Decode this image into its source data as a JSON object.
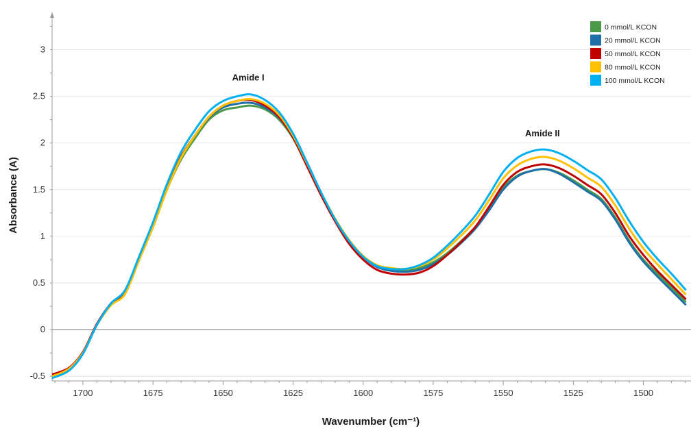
{
  "chart_data": {
    "type": "line",
    "title": "",
    "xlabel": "Wavenumber (cm⁻¹)",
    "ylabel": "Absorbance (A)",
    "x_reversed": true,
    "xlim": [
      1711,
      1483
    ],
    "ylim": [
      -0.55,
      3.4
    ],
    "x_ticks": [
      1700,
      1675,
      1650,
      1625,
      1600,
      1575,
      1550,
      1525,
      1500
    ],
    "y_ticks": [
      -0.5,
      0,
      0.5,
      1,
      1.5,
      2,
      2.5,
      3
    ],
    "x_tick_labels": [
      "1700",
      "1675",
      "1650",
      "1625",
      "1600",
      "1575",
      "1550",
      "1525",
      "1500"
    ],
    "y_tick_labels": [
      "-0.5",
      "0",
      "0.5",
      "1",
      "1.5",
      "2",
      "2.5",
      "3"
    ],
    "grid": "horizontal",
    "legend_position": "top-right",
    "annotations": [
      {
        "text": "Amide I",
        "x": 1641,
        "y": 2.7
      },
      {
        "text": "Amide II",
        "x": 1536,
        "y": 2.1
      }
    ],
    "series": [
      {
        "name": "0 mmol/L KCON",
        "color": "#4a9a4a",
        "x": [
          1711,
          1705,
          1700,
          1695,
          1690,
          1685,
          1680,
          1675,
          1670,
          1665,
          1660,
          1655,
          1650,
          1645,
          1640,
          1635,
          1630,
          1625,
          1620,
          1615,
          1610,
          1605,
          1600,
          1595,
          1590,
          1585,
          1580,
          1575,
          1570,
          1565,
          1560,
          1555,
          1550,
          1545,
          1540,
          1535,
          1530,
          1525,
          1520,
          1515,
          1510,
          1505,
          1500,
          1495,
          1490,
          1485
        ],
        "y": [
          -0.5,
          -0.42,
          -0.25,
          0.05,
          0.27,
          0.4,
          0.75,
          1.1,
          1.5,
          1.82,
          2.05,
          2.25,
          2.35,
          2.38,
          2.4,
          2.36,
          2.25,
          2.05,
          1.75,
          1.45,
          1.18,
          0.95,
          0.78,
          0.68,
          0.65,
          0.64,
          0.66,
          0.72,
          0.82,
          0.95,
          1.1,
          1.3,
          1.52,
          1.65,
          1.7,
          1.72,
          1.68,
          1.6,
          1.5,
          1.4,
          1.2,
          0.95,
          0.75,
          0.6,
          0.45,
          0.3
        ]
      },
      {
        "name": "20 mmol/L KCON",
        "color": "#1f6fa8",
        "x": [
          1711,
          1705,
          1700,
          1695,
          1690,
          1685,
          1680,
          1675,
          1670,
          1665,
          1660,
          1655,
          1650,
          1645,
          1640,
          1635,
          1630,
          1625,
          1620,
          1615,
          1610,
          1605,
          1600,
          1595,
          1590,
          1585,
          1580,
          1575,
          1570,
          1565,
          1560,
          1555,
          1550,
          1545,
          1540,
          1535,
          1530,
          1525,
          1520,
          1515,
          1510,
          1505,
          1500,
          1495,
          1490,
          1485
        ],
        "y": [
          -0.5,
          -0.42,
          -0.24,
          0.06,
          0.28,
          0.42,
          0.76,
          1.12,
          1.52,
          1.85,
          2.08,
          2.27,
          2.38,
          2.42,
          2.43,
          2.38,
          2.27,
          2.06,
          1.76,
          1.45,
          1.18,
          0.95,
          0.78,
          0.67,
          0.63,
          0.62,
          0.64,
          0.7,
          0.8,
          0.93,
          1.08,
          1.28,
          1.5,
          1.64,
          1.7,
          1.72,
          1.67,
          1.58,
          1.48,
          1.38,
          1.18,
          0.93,
          0.73,
          0.57,
          0.42,
          0.27
        ]
      },
      {
        "name": "50 mmol/L KCON",
        "color": "#c00000",
        "x": [
          1711,
          1705,
          1700,
          1695,
          1690,
          1685,
          1680,
          1675,
          1670,
          1665,
          1660,
          1655,
          1650,
          1645,
          1640,
          1635,
          1630,
          1625,
          1620,
          1615,
          1610,
          1605,
          1600,
          1595,
          1590,
          1585,
          1580,
          1575,
          1570,
          1565,
          1560,
          1555,
          1550,
          1545,
          1540,
          1535,
          1530,
          1525,
          1520,
          1515,
          1510,
          1505,
          1500,
          1495,
          1490,
          1485
        ],
        "y": [
          -0.48,
          -0.41,
          -0.24,
          0.06,
          0.28,
          0.41,
          0.76,
          1.12,
          1.52,
          1.85,
          2.08,
          2.28,
          2.4,
          2.45,
          2.46,
          2.4,
          2.28,
          2.06,
          1.75,
          1.44,
          1.16,
          0.92,
          0.75,
          0.64,
          0.6,
          0.59,
          0.61,
          0.68,
          0.8,
          0.94,
          1.1,
          1.32,
          1.55,
          1.69,
          1.75,
          1.77,
          1.73,
          1.65,
          1.55,
          1.45,
          1.25,
          1.0,
          0.8,
          0.63,
          0.48,
          0.33
        ]
      },
      {
        "name": "80 mmol/L KCON",
        "color": "#ffc000",
        "x": [
          1711,
          1705,
          1700,
          1695,
          1690,
          1685,
          1680,
          1675,
          1670,
          1665,
          1660,
          1655,
          1650,
          1645,
          1640,
          1635,
          1630,
          1625,
          1620,
          1615,
          1610,
          1605,
          1600,
          1595,
          1590,
          1585,
          1580,
          1575,
          1570,
          1565,
          1560,
          1555,
          1550,
          1545,
          1540,
          1535,
          1530,
          1525,
          1520,
          1515,
          1510,
          1505,
          1500,
          1495,
          1490,
          1485
        ],
        "y": [
          -0.5,
          -0.42,
          -0.25,
          0.05,
          0.26,
          0.38,
          0.74,
          1.1,
          1.5,
          1.84,
          2.08,
          2.28,
          2.4,
          2.45,
          2.47,
          2.42,
          2.3,
          2.08,
          1.78,
          1.47,
          1.19,
          0.96,
          0.79,
          0.69,
          0.66,
          0.65,
          0.68,
          0.75,
          0.87,
          1.01,
          1.17,
          1.39,
          1.62,
          1.76,
          1.83,
          1.85,
          1.81,
          1.73,
          1.63,
          1.53,
          1.33,
          1.08,
          0.87,
          0.7,
          0.54,
          0.38
        ]
      },
      {
        "name": "100 mmol/L KCON",
        "color": "#00b0f0",
        "x": [
          1711,
          1705,
          1700,
          1695,
          1690,
          1685,
          1680,
          1675,
          1670,
          1665,
          1660,
          1655,
          1650,
          1645,
          1640,
          1635,
          1630,
          1625,
          1620,
          1615,
          1610,
          1605,
          1600,
          1595,
          1590,
          1585,
          1580,
          1575,
          1570,
          1565,
          1560,
          1555,
          1550,
          1545,
          1540,
          1535,
          1530,
          1525,
          1520,
          1515,
          1510,
          1505,
          1500,
          1495,
          1490,
          1485
        ],
        "y": [
          -0.52,
          -0.44,
          -0.26,
          0.05,
          0.28,
          0.42,
          0.78,
          1.15,
          1.56,
          1.9,
          2.14,
          2.34,
          2.45,
          2.5,
          2.52,
          2.46,
          2.33,
          2.1,
          1.79,
          1.47,
          1.18,
          0.95,
          0.78,
          0.68,
          0.65,
          0.65,
          0.69,
          0.77,
          0.9,
          1.05,
          1.22,
          1.45,
          1.69,
          1.84,
          1.91,
          1.93,
          1.89,
          1.81,
          1.71,
          1.61,
          1.41,
          1.16,
          0.94,
          0.76,
          0.6,
          0.43
        ]
      }
    ]
  }
}
